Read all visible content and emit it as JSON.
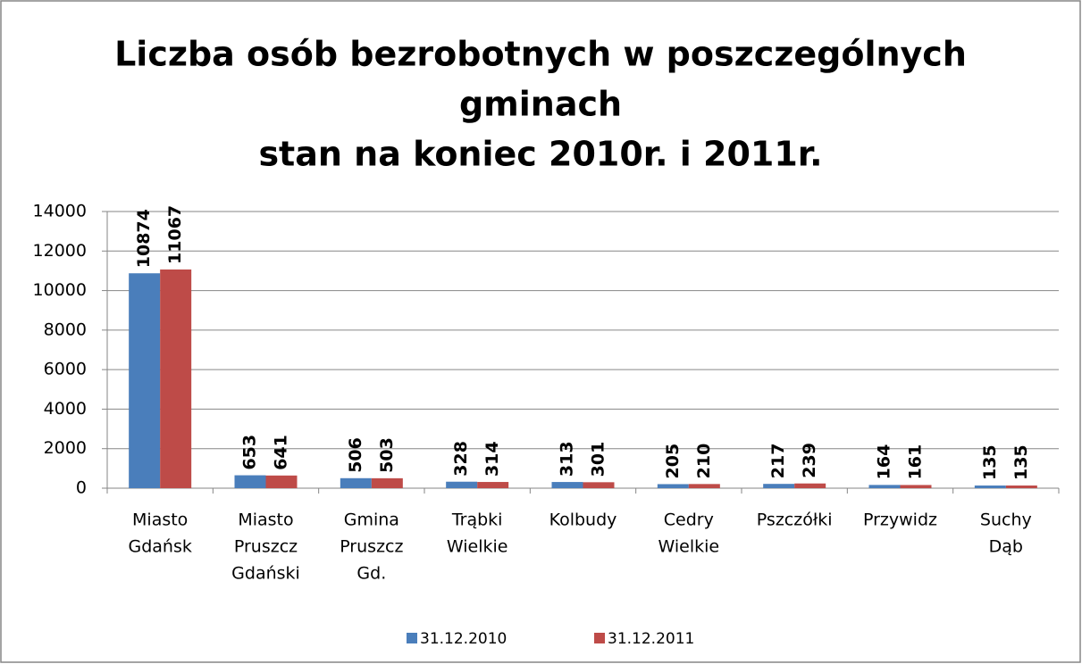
{
  "chart_data": {
    "type": "bar",
    "title": [
      "Liczba osób bezrobotnych w poszczególnych",
      "gminach",
      "stan na koniec 2010r. i 2011r."
    ],
    "categories": [
      [
        "Miasto",
        "Gdańsk"
      ],
      [
        "Miasto",
        "Pruszcz",
        "Gdański"
      ],
      [
        "Gmina",
        "Pruszcz",
        "Gd."
      ],
      [
        "Trąbki",
        "Wielkie"
      ],
      [
        "Kolbudy"
      ],
      [
        "Cedry",
        "Wielkie"
      ],
      [
        "Pszczółki"
      ],
      [
        "Przywidz"
      ],
      [
        "Suchy",
        "Dąb"
      ]
    ],
    "series": [
      {
        "name": "31.12.2010",
        "color": "#4a7ebb",
        "values": [
          10874,
          653,
          506,
          328,
          313,
          205,
          217,
          164,
          135
        ]
      },
      {
        "name": "31.12.2011",
        "color": "#be4b48",
        "values": [
          11067,
          641,
          503,
          314,
          301,
          210,
          239,
          161,
          135
        ]
      }
    ],
    "ylim": [
      0,
      14000
    ],
    "yticks": [
      0,
      2000,
      4000,
      6000,
      8000,
      10000,
      12000,
      14000
    ],
    "grid": true,
    "legend": "bottom"
  }
}
